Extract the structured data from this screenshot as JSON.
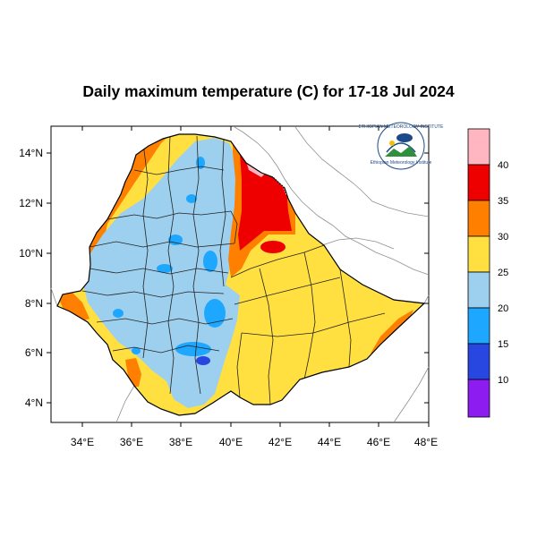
{
  "title": "Daily maximum temperature (C) for 17-18 Jul 2024",
  "x_ticks": [
    "34°E",
    "36°E",
    "38°E",
    "40°E",
    "42°E",
    "44°E",
    "46°E",
    "48°E"
  ],
  "y_ticks": [
    "14°N",
    "12°N",
    "10°N",
    "8°N",
    "6°N",
    "4°N"
  ],
  "legend": {
    "labels": [
      "40",
      "35",
      "30",
      "25",
      "20",
      "15",
      "10"
    ],
    "colors": [
      "#ffb6c1",
      "#ee0000",
      "#ff8000",
      "#ffe040",
      "#9dcfee",
      "#1ea7ff",
      "#2846e0",
      "#8c1cf0"
    ]
  },
  "logo": {
    "arc_text": "ETHIOPIAN METEOROLOGY INSTITUTE",
    "name_text": "Ethiopian Meteorology Institute"
  },
  "chart_data": {
    "type": "heatmap",
    "title": "Daily maximum temperature (C) for 17-18 Jul 2024",
    "xlim": [
      33,
      48.2
    ],
    "ylim": [
      3.1,
      15
    ],
    "x_ticks": [
      34,
      36,
      38,
      40,
      42,
      44,
      46,
      48
    ],
    "y_ticks": [
      14,
      12,
      10,
      8,
      6,
      4
    ],
    "color_levels": [
      10,
      15,
      20,
      25,
      30,
      35,
      40
    ],
    "units": "C"
  }
}
